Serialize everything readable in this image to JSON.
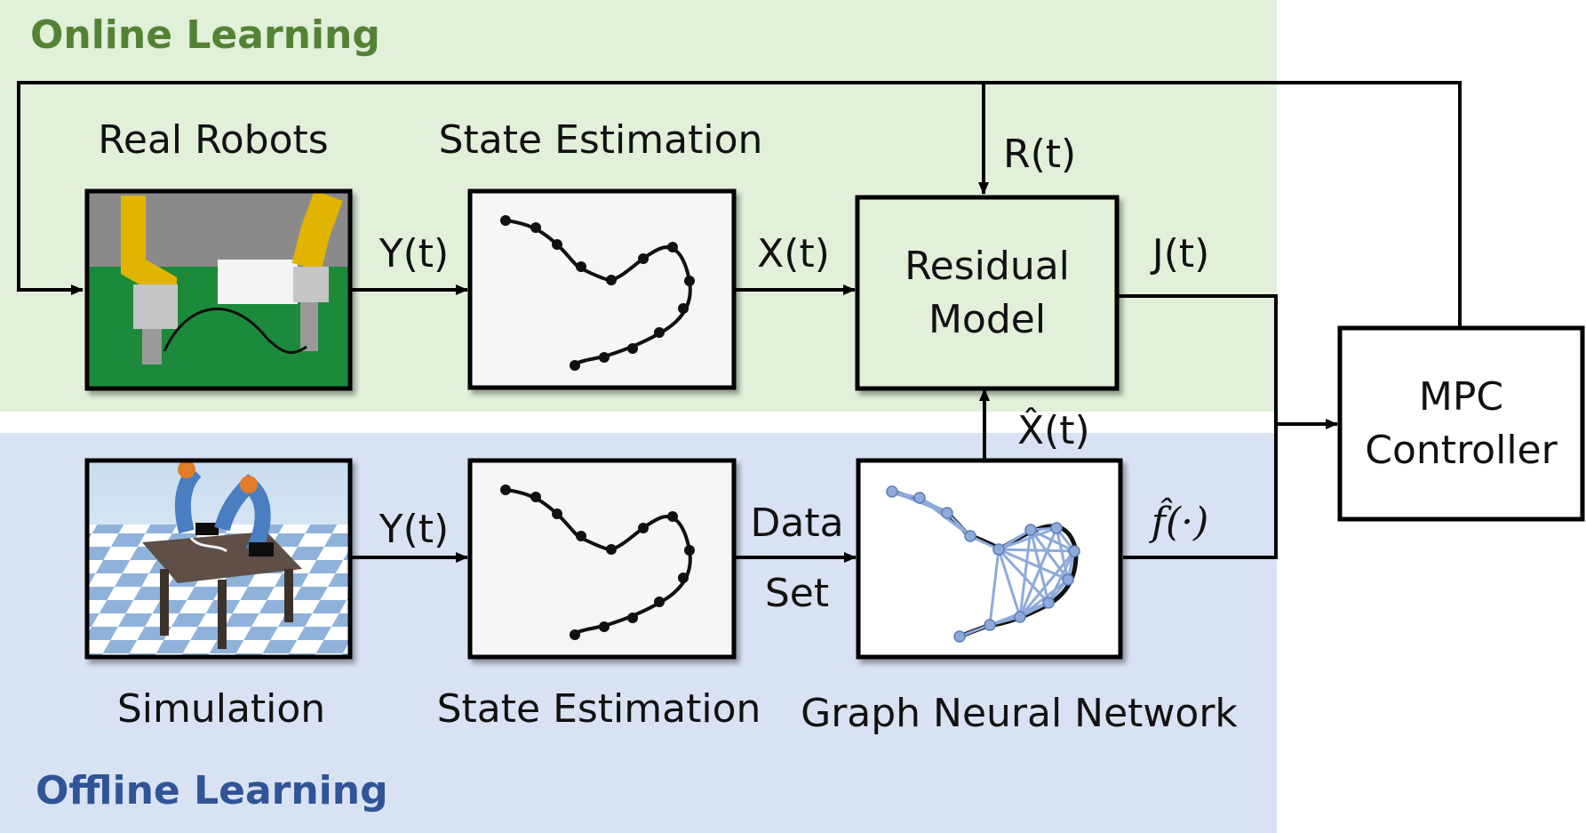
{
  "regions": {
    "online": {
      "title": "Online Learning",
      "bg": "#e2efd9",
      "title_color": "#548235"
    },
    "offline": {
      "title": "Offline Learning",
      "bg": "#d9e2f3",
      "title_color": "#2f5597"
    }
  },
  "blocks": {
    "real_robots": {
      "label": "Real Robots"
    },
    "state_estimation_online": {
      "label": "State Estimation"
    },
    "residual_model": {
      "line1": "Residual",
      "line2": "Model"
    },
    "mpc_controller": {
      "line1": "MPC",
      "line2": "Controller"
    },
    "simulation": {
      "label": "Simulation"
    },
    "state_estimation_offline": {
      "label": "State Estimation"
    },
    "graph_neural_network": {
      "label": "Graph Neural Network"
    }
  },
  "signals": {
    "y_online": "Y(t)",
    "x_online": "X(t)",
    "r": "R(t)",
    "j": "J(t)",
    "x_hat": "X̂(t)",
    "y_offline": "Y(t)",
    "data_set_line1": "Data",
    "data_set_line2": "Set",
    "f_hat": "f̂(·)"
  },
  "colors": {
    "line": "#000000",
    "box_border": "#000000",
    "residual_fill": "#e2efd9",
    "gnn_edge": "#8eaadb",
    "curve": "#111111"
  }
}
